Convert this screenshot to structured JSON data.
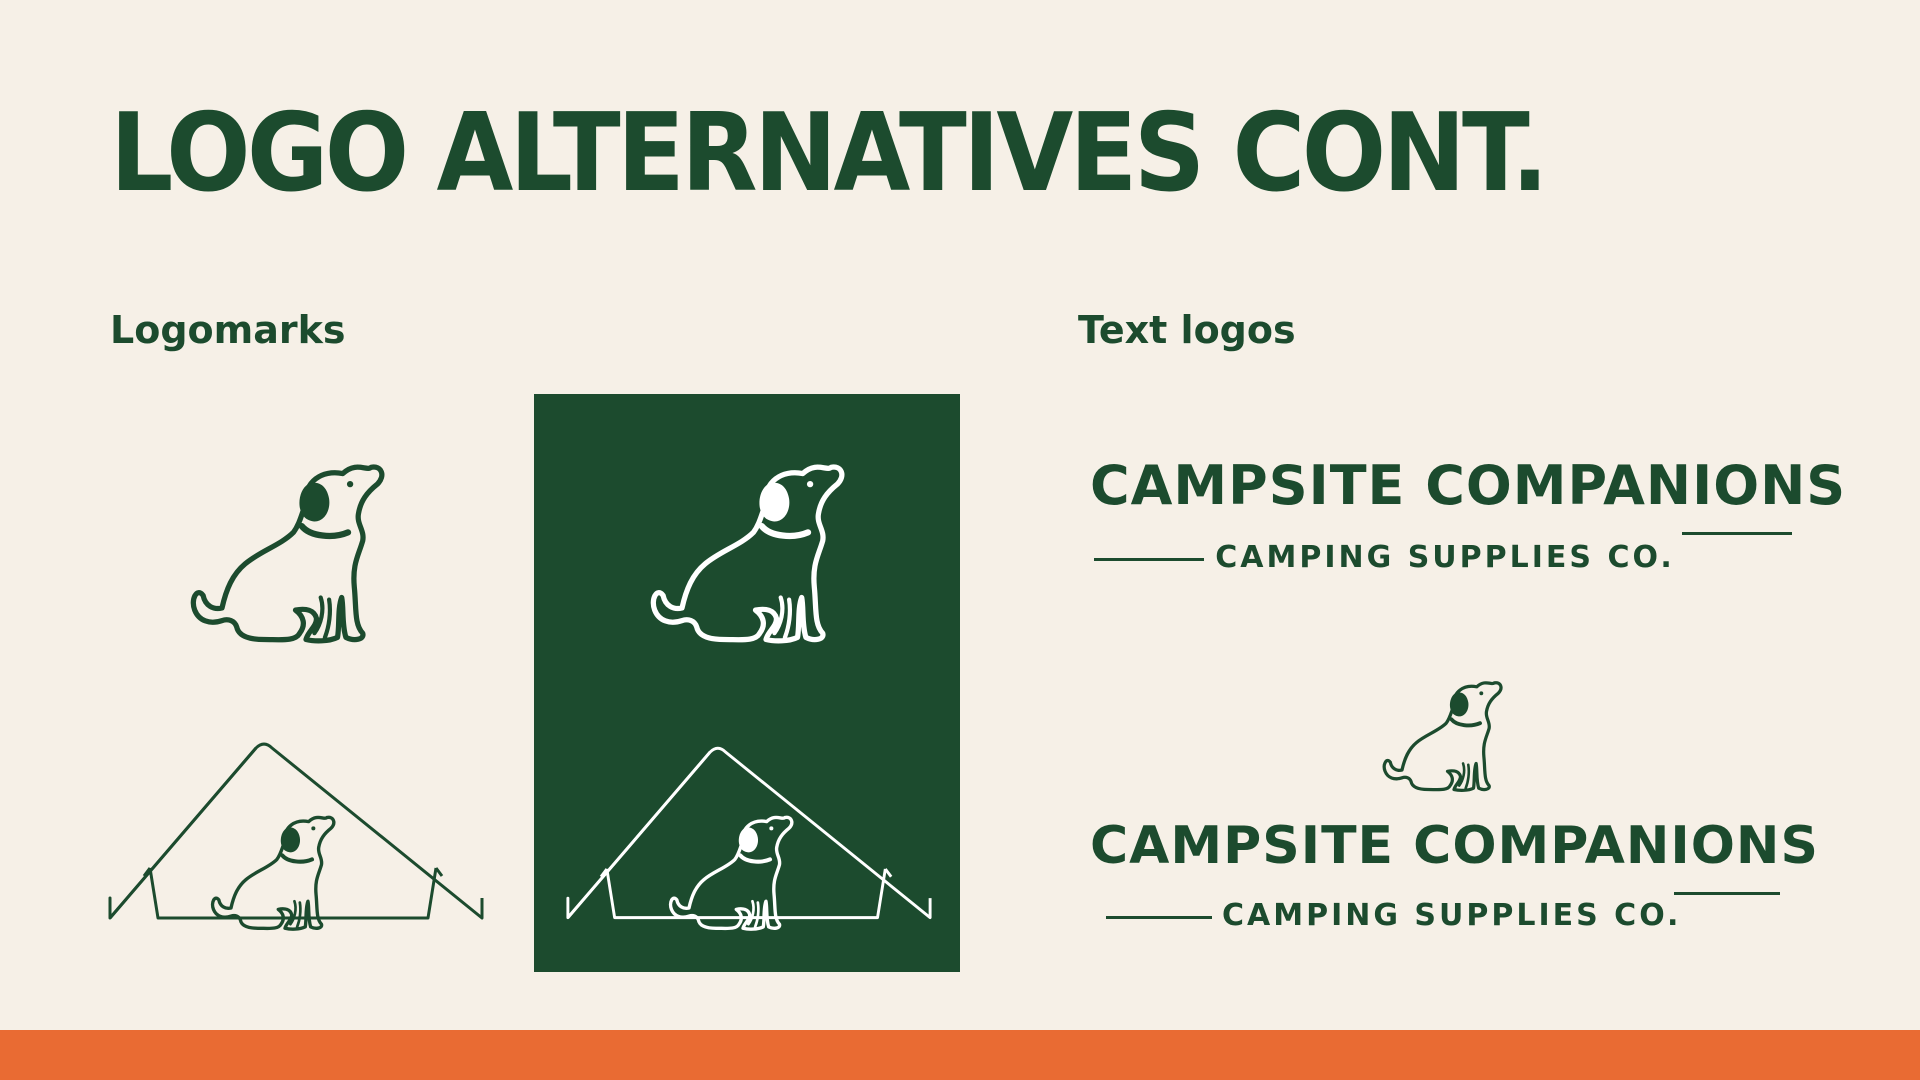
{
  "slide": {
    "title": "LOGO ALTERNATIVES CONT.",
    "colors": {
      "background": "#f6f0e7",
      "brand_green": "#1c4b2e",
      "accent_orange": "#e96b33"
    }
  },
  "logomarks": {
    "label": "Logomarks",
    "icons": [
      "dog-icon",
      "dog-in-tent-icon"
    ]
  },
  "text_logos": {
    "label": "Text logos",
    "primary": {
      "name": "CAMPSITE COMPANIONS",
      "tagline": "CAMPING SUPPLIES CO."
    },
    "stacked": {
      "name": "CAMPSITE COMPANIONS",
      "tagline": "CAMPING SUPPLIES CO.",
      "icon": "dog-icon"
    }
  }
}
